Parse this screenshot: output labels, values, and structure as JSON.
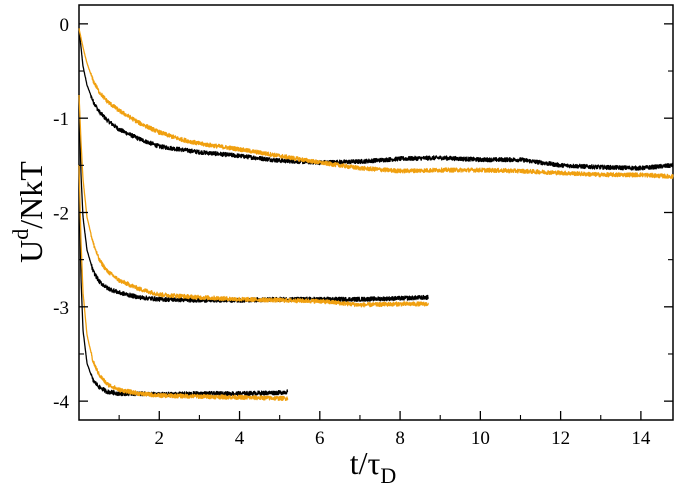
{
  "chart_data": {
    "type": "line",
    "title": "",
    "xlabel": {
      "main": "t/τ",
      "sub": "D"
    },
    "ylabel": {
      "main": "U",
      "sup": "d",
      "tail": "/NkT"
    },
    "xlim": [
      0,
      14.8
    ],
    "ylim": [
      -4.2,
      0.2
    ],
    "xticks": [
      2,
      4,
      6,
      8,
      10,
      12,
      14
    ],
    "yticks": [
      0,
      -1,
      -2,
      -3,
      -4
    ],
    "xtick_labels": [
      "2",
      "4",
      "6",
      "8",
      "10",
      "12",
      "14"
    ],
    "ytick_labels": [
      "0",
      "-1",
      "-2",
      "-3",
      "-4"
    ],
    "grid": false,
    "legend": "none",
    "series": [
      {
        "color": "#000000",
        "points": [
          [
            0.0,
            -0.05
          ],
          [
            0.1,
            -0.45
          ],
          [
            0.2,
            -0.65
          ],
          [
            0.35,
            -0.82
          ],
          [
            0.5,
            -0.93
          ],
          [
            0.7,
            -1.02
          ],
          [
            1.0,
            -1.12
          ],
          [
            1.5,
            -1.22
          ],
          [
            2.0,
            -1.3
          ],
          [
            2.5,
            -1.33
          ],
          [
            3.0,
            -1.36
          ],
          [
            4.0,
            -1.4
          ],
          [
            5.0,
            -1.45
          ],
          [
            6.0,
            -1.47
          ],
          [
            7.0,
            -1.46
          ],
          [
            8.0,
            -1.43
          ],
          [
            9.0,
            -1.42
          ],
          [
            10.0,
            -1.44
          ],
          [
            11.0,
            -1.44
          ],
          [
            12.0,
            -1.5
          ],
          [
            13.0,
            -1.52
          ],
          [
            14.0,
            -1.53
          ],
          [
            14.8,
            -1.5
          ]
        ]
      },
      {
        "color": "#f0a010",
        "points": [
          [
            0.0,
            -0.05
          ],
          [
            0.1,
            -0.25
          ],
          [
            0.2,
            -0.42
          ],
          [
            0.35,
            -0.6
          ],
          [
            0.5,
            -0.72
          ],
          [
            0.7,
            -0.82
          ],
          [
            1.0,
            -0.92
          ],
          [
            1.5,
            -1.05
          ],
          [
            2.0,
            -1.15
          ],
          [
            2.5,
            -1.22
          ],
          [
            3.0,
            -1.27
          ],
          [
            4.0,
            -1.33
          ],
          [
            5.0,
            -1.4
          ],
          [
            6.0,
            -1.47
          ],
          [
            7.0,
            -1.53
          ],
          [
            8.0,
            -1.56
          ],
          [
            9.0,
            -1.55
          ],
          [
            10.0,
            -1.55
          ],
          [
            11.0,
            -1.56
          ],
          [
            12.0,
            -1.58
          ],
          [
            13.0,
            -1.6
          ],
          [
            14.0,
            -1.6
          ],
          [
            14.8,
            -1.62
          ]
        ]
      },
      {
        "color": "#000000",
        "points": [
          [
            0.0,
            -0.75
          ],
          [
            0.05,
            -1.6
          ],
          [
            0.1,
            -2.05
          ],
          [
            0.2,
            -2.4
          ],
          [
            0.35,
            -2.62
          ],
          [
            0.5,
            -2.73
          ],
          [
            0.7,
            -2.8
          ],
          [
            1.0,
            -2.85
          ],
          [
            1.5,
            -2.9
          ],
          [
            2.0,
            -2.92
          ],
          [
            3.0,
            -2.93
          ],
          [
            4.0,
            -2.93
          ],
          [
            5.0,
            -2.92
          ],
          [
            6.0,
            -2.92
          ],
          [
            7.0,
            -2.92
          ],
          [
            8.0,
            -2.91
          ],
          [
            8.7,
            -2.9
          ]
        ]
      },
      {
        "color": "#f0a010",
        "points": [
          [
            0.0,
            -0.75
          ],
          [
            0.05,
            -1.25
          ],
          [
            0.1,
            -1.65
          ],
          [
            0.2,
            -2.05
          ],
          [
            0.35,
            -2.32
          ],
          [
            0.5,
            -2.5
          ],
          [
            0.7,
            -2.62
          ],
          [
            1.0,
            -2.72
          ],
          [
            1.5,
            -2.81
          ],
          [
            2.0,
            -2.87
          ],
          [
            3.0,
            -2.9
          ],
          [
            4.0,
            -2.92
          ],
          [
            5.0,
            -2.93
          ],
          [
            6.0,
            -2.94
          ],
          [
            7.0,
            -2.98
          ],
          [
            8.0,
            -2.97
          ],
          [
            8.7,
            -2.97
          ]
        ]
      },
      {
        "color": "#000000",
        "points": [
          [
            0.0,
            -1.5
          ],
          [
            0.05,
            -2.7
          ],
          [
            0.1,
            -3.25
          ],
          [
            0.2,
            -3.6
          ],
          [
            0.35,
            -3.78
          ],
          [
            0.5,
            -3.85
          ],
          [
            0.7,
            -3.9
          ],
          [
            1.0,
            -3.92
          ],
          [
            1.5,
            -3.92
          ],
          [
            2.0,
            -3.93
          ],
          [
            3.0,
            -3.92
          ],
          [
            4.0,
            -3.92
          ],
          [
            5.0,
            -3.91
          ],
          [
            5.2,
            -3.9
          ]
        ]
      },
      {
        "color": "#f0a010",
        "points": [
          [
            0.0,
            -1.5
          ],
          [
            0.05,
            -2.3
          ],
          [
            0.1,
            -2.85
          ],
          [
            0.2,
            -3.3
          ],
          [
            0.35,
            -3.58
          ],
          [
            0.5,
            -3.72
          ],
          [
            0.7,
            -3.82
          ],
          [
            1.0,
            -3.88
          ],
          [
            1.5,
            -3.92
          ],
          [
            2.0,
            -3.94
          ],
          [
            3.0,
            -3.95
          ],
          [
            4.0,
            -3.96
          ],
          [
            5.0,
            -3.97
          ],
          [
            5.2,
            -3.97
          ]
        ]
      }
    ]
  }
}
